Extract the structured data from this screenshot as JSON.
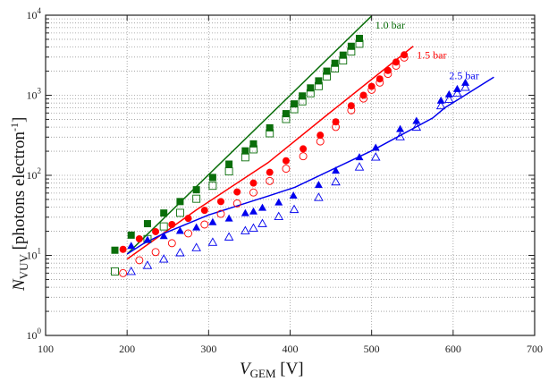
{
  "chart_data": {
    "type": "scatter",
    "title": "",
    "xlabel": {
      "main": "V",
      "sub": "GEM",
      "rest": " [V]"
    },
    "ylabel": {
      "main": "N",
      "sub": "VUV",
      "rest": " [photons electron",
      "sup": "-1",
      "end": "]"
    },
    "xlim": [
      100,
      700
    ],
    "ylim": [
      1,
      10000
    ],
    "yscale": "log",
    "grid": true,
    "xticks": [
      "100",
      "200",
      "300",
      "400",
      "500",
      "600",
      "700"
    ],
    "yticks": [
      {
        "base": "10",
        "exp": "0"
      },
      {
        "base": "10",
        "exp": "1"
      },
      {
        "base": "10",
        "exp": "2"
      },
      {
        "base": "10",
        "exp": "3"
      },
      {
        "base": "10",
        "exp": "4"
      }
    ],
    "series": [
      {
        "name": "1.0 bar",
        "color": "#0a6e0a",
        "marker": "square",
        "filled": [
          [
            185,
            11.6
          ],
          [
            205,
            17.9
          ],
          [
            225,
            24.9
          ],
          [
            245,
            33.8
          ],
          [
            265,
            47
          ],
          [
            285,
            66
          ],
          [
            305,
            94
          ],
          [
            325,
            138
          ],
          [
            345,
            202
          ],
          [
            355,
            247
          ],
          [
            375,
            392
          ],
          [
            395,
            589
          ],
          [
            405,
            780
          ],
          [
            415,
            980
          ],
          [
            425,
            1235
          ],
          [
            435,
            1513
          ],
          [
            445,
            2000
          ],
          [
            455,
            2510
          ],
          [
            465,
            3170
          ],
          [
            475,
            4090
          ],
          [
            485,
            5130
          ]
        ],
        "open": [
          [
            185,
            6.3
          ],
          [
            225,
            16
          ],
          [
            245,
            23
          ],
          [
            265,
            34
          ],
          [
            285,
            51
          ],
          [
            305,
            74
          ],
          [
            325,
            112
          ],
          [
            345,
            168
          ],
          [
            355,
            211
          ],
          [
            375,
            335
          ],
          [
            395,
            505
          ],
          [
            405,
            670
          ],
          [
            415,
            840
          ],
          [
            425,
            1060
          ],
          [
            435,
            1300
          ],
          [
            445,
            1720
          ],
          [
            455,
            2160
          ],
          [
            465,
            2720
          ],
          [
            475,
            3520
          ],
          [
            485,
            4400
          ]
        ],
        "curve": [
          [
            200,
            10.4
          ],
          [
            500,
            9800
          ]
        ]
      },
      {
        "name": "1.5 bar",
        "color": "#ff0000",
        "marker": "circle",
        "filled": [
          [
            195,
            11.9
          ],
          [
            215,
            16.1
          ],
          [
            235,
            19.8
          ],
          [
            255,
            24.3
          ],
          [
            275,
            29
          ],
          [
            295,
            36.5
          ],
          [
            315,
            47
          ],
          [
            335,
            62
          ],
          [
            355,
            80
          ],
          [
            375,
            109
          ],
          [
            395,
            152
          ],
          [
            416,
            214
          ],
          [
            437,
            317
          ],
          [
            456,
            465
          ],
          [
            475,
            740
          ],
          [
            490,
            1000
          ],
          [
            500,
            1290
          ],
          [
            510,
            1600
          ],
          [
            520,
            2040
          ],
          [
            530,
            2600
          ],
          [
            540,
            3200
          ]
        ],
        "open": [
          [
            195,
            6.0
          ],
          [
            215,
            8.7
          ],
          [
            235,
            11
          ],
          [
            255,
            14.2
          ],
          [
            275,
            18.8
          ],
          [
            295,
            24.3
          ],
          [
            315,
            33
          ],
          [
            335,
            44.6
          ],
          [
            355,
            61
          ],
          [
            375,
            85
          ],
          [
            395,
            121
          ],
          [
            416,
            173
          ],
          [
            437,
            265
          ],
          [
            456,
            402
          ],
          [
            475,
            650
          ],
          [
            490,
            910
          ],
          [
            500,
            1170
          ],
          [
            510,
            1440
          ],
          [
            520,
            1850
          ],
          [
            530,
            2340
          ],
          [
            540,
            2960
          ]
        ],
        "curve": [
          [
            200,
            9
          ],
          [
            285,
            37
          ],
          [
            373,
            144
          ],
          [
            446,
            575
          ],
          [
            551,
            4100
          ]
        ]
      },
      {
        "name": "2.5 bar",
        "color": "#0000ee",
        "marker": "triangle",
        "filled": [
          [
            205,
            13.2
          ],
          [
            225,
            15.7
          ],
          [
            245,
            17.5
          ],
          [
            265,
            20.3
          ],
          [
            285,
            22.4
          ],
          [
            305,
            26.1
          ],
          [
            325,
            29
          ],
          [
            345,
            33.8
          ],
          [
            355,
            35.5
          ],
          [
            366,
            39.5
          ],
          [
            386,
            46
          ],
          [
            404,
            56
          ],
          [
            435,
            76
          ],
          [
            456,
            115
          ],
          [
            485,
            169
          ],
          [
            505,
            222
          ],
          [
            535,
            380
          ],
          [
            555,
            480
          ],
          [
            585,
            860
          ],
          [
            595,
            1030
          ],
          [
            605,
            1200
          ],
          [
            615,
            1440
          ]
        ],
        "open": [
          [
            205,
            6.3
          ],
          [
            225,
            7.5
          ],
          [
            245,
            9
          ],
          [
            265,
            10.8
          ],
          [
            285,
            12.5
          ],
          [
            305,
            14.6
          ],
          [
            325,
            17
          ],
          [
            345,
            20.3
          ],
          [
            355,
            21.9
          ],
          [
            366,
            25
          ],
          [
            386,
            30.6
          ],
          [
            405,
            37.5
          ],
          [
            435,
            53
          ],
          [
            456,
            83
          ],
          [
            485,
            127
          ],
          [
            505,
            169
          ],
          [
            535,
            304
          ],
          [
            555,
            400
          ],
          [
            585,
            740
          ],
          [
            595,
            890
          ],
          [
            605,
            1060
          ],
          [
            615,
            1260
          ]
        ],
        "curve": [
          [
            200,
            10.4
          ],
          [
            220,
            14
          ],
          [
            245,
            18.8
          ],
          [
            300,
            32
          ],
          [
            373,
            55
          ],
          [
            406,
            71
          ],
          [
            502,
            207
          ],
          [
            575,
            520
          ],
          [
            590,
            700
          ],
          [
            650,
            1680
          ]
        ]
      }
    ]
  }
}
